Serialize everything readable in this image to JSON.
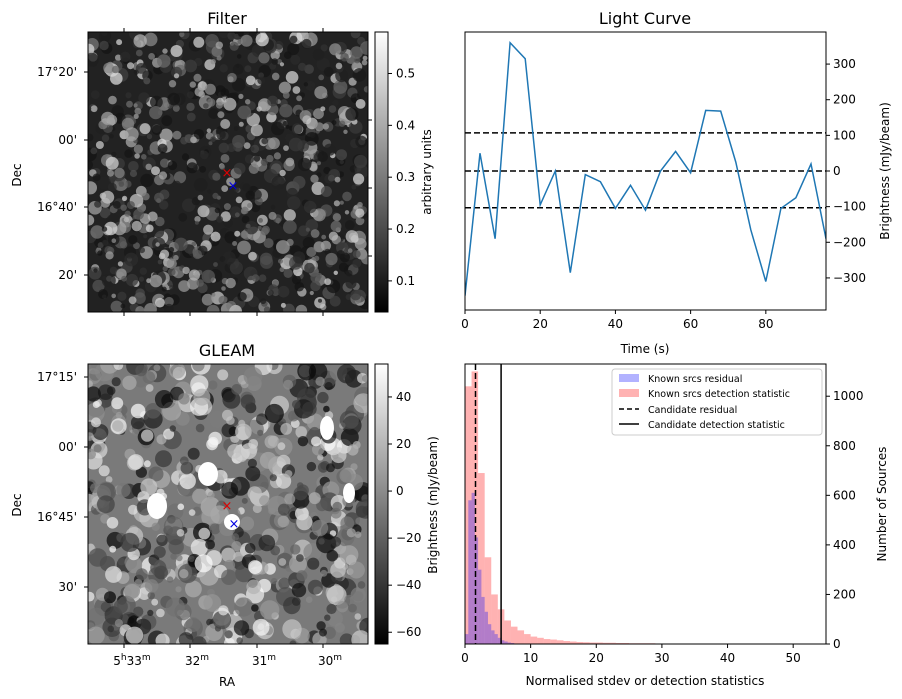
{
  "filter_panel": {
    "title": "Filter",
    "ylabel": "Dec",
    "yticks": [
      "17°20'",
      "00'",
      "16°40'",
      "20'"
    ],
    "colorbar": {
      "label": "arbitrary units",
      "ticks": [
        "0.1",
        "0.2",
        "0.3",
        "0.4",
        "0.5"
      ],
      "range": [
        0.04,
        0.58
      ],
      "cmap": "gray"
    },
    "markers": [
      {
        "symbol": "×",
        "color": "#e00000"
      },
      {
        "symbol": "×",
        "color": "#0000e0"
      }
    ]
  },
  "gleam_panel": {
    "title": "GLEAM",
    "xlabel": "RA",
    "ylabel": "Dec",
    "yticks": [
      "17°15'",
      "00'",
      "16°45'",
      "30'"
    ],
    "xticks": [
      {
        "h": "5",
        "m": "33",
        "prefix_h": "h",
        "suffix_m": "m"
      },
      {
        "label": "32",
        "sup": "m"
      },
      {
        "label": "31",
        "sup": "m"
      },
      {
        "label": "30",
        "sup": "m"
      }
    ],
    "colorbar": {
      "label": "Brightness (mJy/beam)",
      "ticks": [
        "40",
        "20",
        "0",
        "−20",
        "−40",
        "−60"
      ],
      "range": [
        -65,
        54
      ],
      "cmap": "gray"
    },
    "markers": [
      {
        "symbol": "×",
        "color": "#e00000"
      },
      {
        "symbol": "×",
        "color": "#0000e0"
      }
    ]
  },
  "chart_data": [
    {
      "type": "line",
      "title": "Light Curve",
      "xlabel": "Time (s)",
      "ylabel": "Brightness (mJy/beam)",
      "xlim": [
        0,
        96
      ],
      "ylim": [
        -390,
        390
      ],
      "xticks": [
        0,
        20,
        40,
        60,
        80
      ],
      "yticks": [
        -300,
        -200,
        -100,
        0,
        100,
        200,
        300
      ],
      "series": [
        {
          "name": "light curve",
          "color": "#1f77b4",
          "x": [
            0,
            4,
            8,
            12,
            16,
            20,
            24,
            28,
            32,
            36,
            40,
            44,
            48,
            52,
            56,
            60,
            64,
            68,
            72,
            76,
            80,
            84,
            88,
            92,
            96
          ],
          "y": [
            -350,
            50,
            -190,
            360,
            315,
            -95,
            0,
            -285,
            -10,
            -30,
            -105,
            -40,
            -110,
            0,
            55,
            -5,
            170,
            168,
            25,
            -165,
            -310,
            -105,
            -75,
            20,
            -190
          ]
        }
      ],
      "hlines": [
        {
          "y": 107,
          "style": "dashed",
          "color": "#000000"
        },
        {
          "y": 0,
          "style": "dashed",
          "color": "#000000"
        },
        {
          "y": -103,
          "style": "dashed",
          "color": "#000000"
        }
      ]
    },
    {
      "type": "histogram",
      "xlabel": "Normalised stdev or detection statistics",
      "ylabel": "Number of Sources",
      "xlim": [
        0,
        55
      ],
      "ylim": [
        0,
        1130
      ],
      "xticks": [
        0,
        10,
        20,
        30,
        40,
        50
      ],
      "yticks": [
        0,
        200,
        400,
        600,
        800,
        1000
      ],
      "bin_width": 1,
      "series": [
        {
          "name": "Known srcs residual",
          "color": "#0000ff",
          "alpha": 0.3,
          "bins_start": 0,
          "bin_width": 0.5,
          "values": [
            40,
            580,
            610,
            430,
            300,
            190,
            130,
            80,
            55,
            40,
            25,
            15,
            10,
            6,
            4,
            2,
            1,
            1
          ]
        },
        {
          "name": "Known srcs detection statistic",
          "color": "#ff0000",
          "alpha": 0.3,
          "bins_start": 0,
          "bin_width": 1,
          "values": [
            1040,
            1100,
            690,
            350,
            200,
            140,
            95,
            70,
            55,
            40,
            30,
            25,
            20,
            18,
            15,
            12,
            10,
            8,
            7,
            6,
            6,
            5,
            5,
            4,
            4,
            3,
            3,
            3,
            3,
            2,
            2,
            2,
            2,
            2,
            2,
            1,
            1,
            1,
            1,
            1,
            1,
            1,
            1,
            1,
            1,
            1,
            1,
            1,
            1,
            1,
            1,
            1,
            1,
            1,
            1
          ]
        }
      ],
      "vlines": [
        {
          "name": "Candidate residual",
          "x": 1.6,
          "style": "dashed",
          "color": "#000000"
        },
        {
          "name": "Candidate detection statistic",
          "x": 5.5,
          "style": "solid",
          "color": "#000000"
        }
      ],
      "legend": {
        "placement": "top-right",
        "entries": [
          {
            "label": "Known srcs residual",
            "kind": "patch",
            "color": "#0000ff"
          },
          {
            "label": "Known srcs detection statistic",
            "kind": "patch",
            "color": "#ff0000"
          },
          {
            "label": "Candidate residual",
            "kind": "dashed"
          },
          {
            "label": "Candidate detection statistic",
            "kind": "solid"
          }
        ]
      }
    }
  ]
}
